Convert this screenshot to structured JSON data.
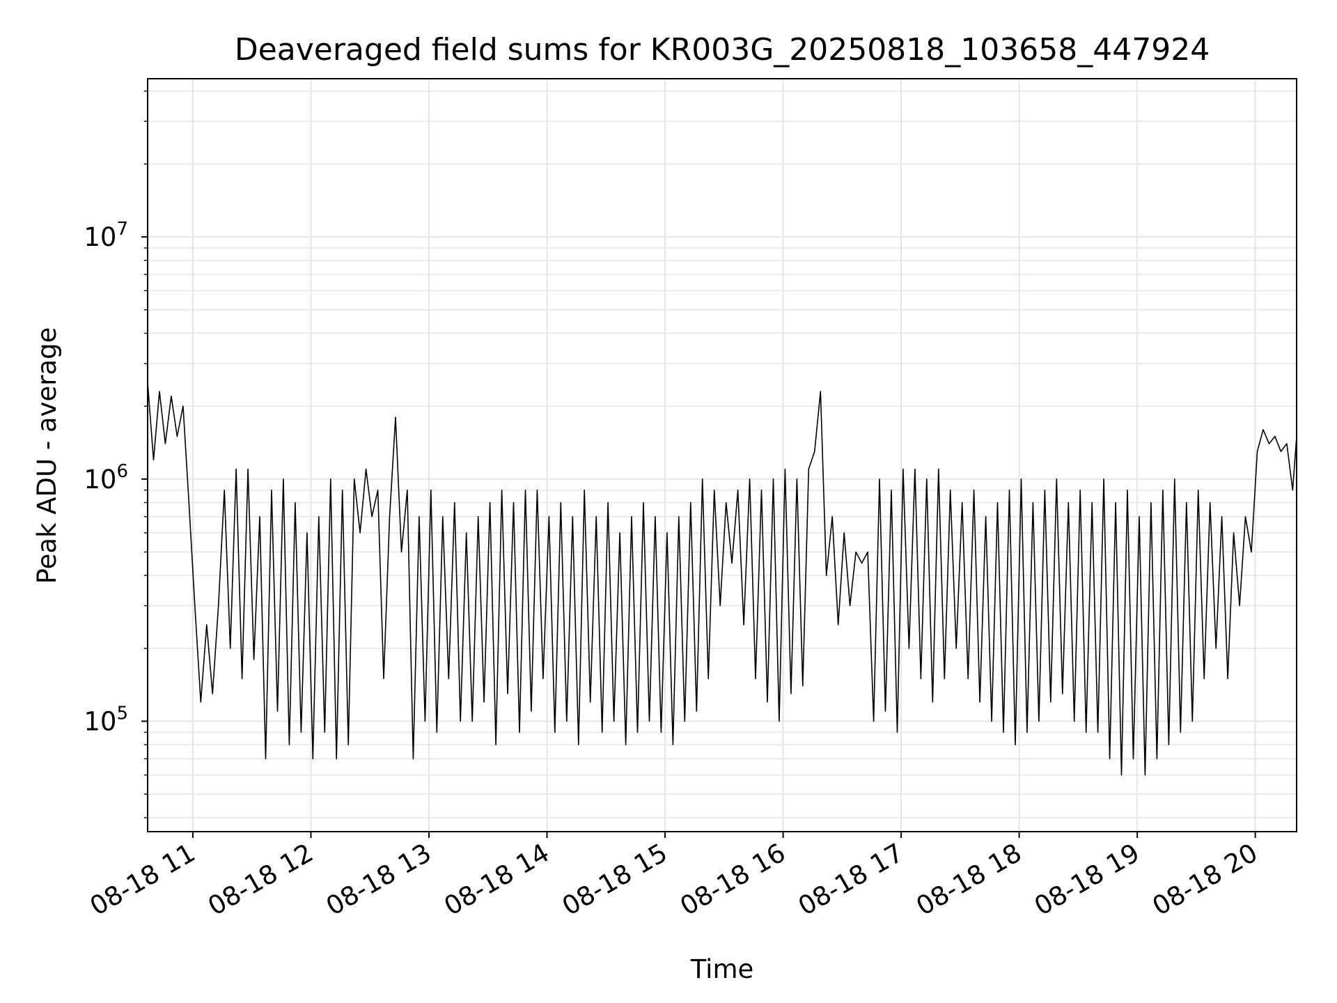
{
  "chart_data": {
    "type": "line",
    "title": "Deaveraged field sums for KR003G_20250818_103658_447924",
    "xlabel": "Time",
    "ylabel": "Peak ADU - average",
    "yscale": "log",
    "ylim": [
      35000,
      45000000
    ],
    "xlim": [
      "2025-08-18 10:37",
      "2025-08-18 20:21"
    ],
    "grid": true,
    "line_color": "#000000",
    "x_ticks": [
      {
        "label": "08-18 11",
        "time": "2025-08-18 11:00"
      },
      {
        "label": "08-18 12",
        "time": "2025-08-18 12:00"
      },
      {
        "label": "08-18 13",
        "time": "2025-08-18 13:00"
      },
      {
        "label": "08-18 14",
        "time": "2025-08-18 14:00"
      },
      {
        "label": "08-18 15",
        "time": "2025-08-18 15:00"
      },
      {
        "label": "08-18 16",
        "time": "2025-08-18 16:00"
      },
      {
        "label": "08-18 17",
        "time": "2025-08-18 17:00"
      },
      {
        "label": "08-18 18",
        "time": "2025-08-18 18:00"
      },
      {
        "label": "08-18 19",
        "time": "2025-08-18 19:00"
      },
      {
        "label": "08-18 20",
        "time": "2025-08-18 20:00"
      }
    ],
    "y_ticks": [
      {
        "base": "10",
        "exp": "5",
        "value": 100000
      },
      {
        "base": "10",
        "exp": "6",
        "value": 1000000
      },
      {
        "base": "10",
        "exp": "7",
        "value": 10000000
      }
    ],
    "series": [
      {
        "x": [
          "2025-08-18 10:37",
          "2025-08-18 10:40",
          "2025-08-18 10:43",
          "2025-08-18 10:46",
          "2025-08-18 10:49",
          "2025-08-18 10:52",
          "2025-08-18 10:55",
          "2025-08-18 10:58",
          "2025-08-18 11:01",
          "2025-08-18 11:04",
          "2025-08-18 11:07",
          "2025-08-18 11:10",
          "2025-08-18 11:13",
          "2025-08-18 11:16",
          "2025-08-18 11:19",
          "2025-08-18 11:22",
          "2025-08-18 11:25",
          "2025-08-18 11:28",
          "2025-08-18 11:31",
          "2025-08-18 11:34",
          "2025-08-18 11:37",
          "2025-08-18 11:40",
          "2025-08-18 11:43",
          "2025-08-18 11:46",
          "2025-08-18 11:49",
          "2025-08-18 11:52",
          "2025-08-18 11:55",
          "2025-08-18 11:58",
          "2025-08-18 12:01",
          "2025-08-18 12:04",
          "2025-08-18 12:07",
          "2025-08-18 12:10",
          "2025-08-18 12:13",
          "2025-08-18 12:16",
          "2025-08-18 12:19",
          "2025-08-18 12:22",
          "2025-08-18 12:25",
          "2025-08-18 12:28",
          "2025-08-18 12:31",
          "2025-08-18 12:34",
          "2025-08-18 12:37",
          "2025-08-18 12:40",
          "2025-08-18 12:43",
          "2025-08-18 12:46",
          "2025-08-18 12:49",
          "2025-08-18 12:52",
          "2025-08-18 12:55",
          "2025-08-18 12:58",
          "2025-08-18 13:01",
          "2025-08-18 13:04",
          "2025-08-18 13:07",
          "2025-08-18 13:10",
          "2025-08-18 13:13",
          "2025-08-18 13:16",
          "2025-08-18 13:19",
          "2025-08-18 13:22",
          "2025-08-18 13:25",
          "2025-08-18 13:28",
          "2025-08-18 13:31",
          "2025-08-18 13:34",
          "2025-08-18 13:37",
          "2025-08-18 13:40",
          "2025-08-18 13:43",
          "2025-08-18 13:46",
          "2025-08-18 13:49",
          "2025-08-18 13:52",
          "2025-08-18 13:55",
          "2025-08-18 13:58",
          "2025-08-18 14:01",
          "2025-08-18 14:04",
          "2025-08-18 14:07",
          "2025-08-18 14:10",
          "2025-08-18 14:13",
          "2025-08-18 14:16",
          "2025-08-18 14:19",
          "2025-08-18 14:22",
          "2025-08-18 14:25",
          "2025-08-18 14:28",
          "2025-08-18 14:31",
          "2025-08-18 14:34",
          "2025-08-18 14:37",
          "2025-08-18 14:40",
          "2025-08-18 14:43",
          "2025-08-18 14:46",
          "2025-08-18 14:49",
          "2025-08-18 14:52",
          "2025-08-18 14:55",
          "2025-08-18 14:58",
          "2025-08-18 15:01",
          "2025-08-18 15:04",
          "2025-08-18 15:07",
          "2025-08-18 15:10",
          "2025-08-18 15:13",
          "2025-08-18 15:16",
          "2025-08-18 15:19",
          "2025-08-18 15:22",
          "2025-08-18 15:25",
          "2025-08-18 15:28",
          "2025-08-18 15:31",
          "2025-08-18 15:34",
          "2025-08-18 15:37",
          "2025-08-18 15:40",
          "2025-08-18 15:43",
          "2025-08-18 15:46",
          "2025-08-18 15:49",
          "2025-08-18 15:52",
          "2025-08-18 15:55",
          "2025-08-18 15:58",
          "2025-08-18 16:01",
          "2025-08-18 16:04",
          "2025-08-18 16:07",
          "2025-08-18 16:10",
          "2025-08-18 16:13",
          "2025-08-18 16:16",
          "2025-08-18 16:19",
          "2025-08-18 16:22",
          "2025-08-18 16:25",
          "2025-08-18 16:28",
          "2025-08-18 16:31",
          "2025-08-18 16:34",
          "2025-08-18 16:37",
          "2025-08-18 16:40",
          "2025-08-18 16:43",
          "2025-08-18 16:46",
          "2025-08-18 16:49",
          "2025-08-18 16:52",
          "2025-08-18 16:55",
          "2025-08-18 16:58",
          "2025-08-18 17:01",
          "2025-08-18 17:04",
          "2025-08-18 17:07",
          "2025-08-18 17:10",
          "2025-08-18 17:13",
          "2025-08-18 17:16",
          "2025-08-18 17:19",
          "2025-08-18 17:22",
          "2025-08-18 17:25",
          "2025-08-18 17:28",
          "2025-08-18 17:31",
          "2025-08-18 17:34",
          "2025-08-18 17:37",
          "2025-08-18 17:40",
          "2025-08-18 17:43",
          "2025-08-18 17:46",
          "2025-08-18 17:49",
          "2025-08-18 17:52",
          "2025-08-18 17:55",
          "2025-08-18 17:58",
          "2025-08-18 18:01",
          "2025-08-18 18:04",
          "2025-08-18 18:07",
          "2025-08-18 18:10",
          "2025-08-18 18:13",
          "2025-08-18 18:16",
          "2025-08-18 18:19",
          "2025-08-18 18:22",
          "2025-08-18 18:25",
          "2025-08-18 18:28",
          "2025-08-18 18:31",
          "2025-08-18 18:34",
          "2025-08-18 18:37",
          "2025-08-18 18:40",
          "2025-08-18 18:43",
          "2025-08-18 18:46",
          "2025-08-18 18:49",
          "2025-08-18 18:52",
          "2025-08-18 18:55",
          "2025-08-18 18:58",
          "2025-08-18 19:01",
          "2025-08-18 19:04",
          "2025-08-18 19:07",
          "2025-08-18 19:10",
          "2025-08-18 19:13",
          "2025-08-18 19:16",
          "2025-08-18 19:19",
          "2025-08-18 19:22",
          "2025-08-18 19:25",
          "2025-08-18 19:28",
          "2025-08-18 19:31",
          "2025-08-18 19:34",
          "2025-08-18 19:37",
          "2025-08-18 19:40",
          "2025-08-18 19:43",
          "2025-08-18 19:46",
          "2025-08-18 19:49",
          "2025-08-18 19:52",
          "2025-08-18 19:55",
          "2025-08-18 19:58",
          "2025-08-18 20:01",
          "2025-08-18 20:04",
          "2025-08-18 20:07",
          "2025-08-18 20:10",
          "2025-08-18 20:13",
          "2025-08-18 20:16",
          "2025-08-18 20:19",
          "2025-08-18 20:21"
        ],
        "y": [
          2500000,
          1200000,
          2300000,
          1400000,
          2200000,
          1500000,
          2000000,
          800000,
          300000,
          120000,
          250000,
          130000,
          300000,
          900000,
          200000,
          1100000,
          150000,
          1100000,
          180000,
          700000,
          70000,
          900000,
          110000,
          1000000,
          80000,
          800000,
          90000,
          600000,
          70000,
          700000,
          90000,
          1000000,
          70000,
          900000,
          80000,
          1000000,
          600000,
          1100000,
          700000,
          900000,
          150000,
          700000,
          1800000,
          500000,
          900000,
          70000,
          700000,
          100000,
          900000,
          90000,
          700000,
          150000,
          800000,
          100000,
          600000,
          100000,
          700000,
          120000,
          800000,
          80000,
          900000,
          130000,
          800000,
          90000,
          900000,
          110000,
          900000,
          150000,
          700000,
          90000,
          800000,
          100000,
          700000,
          80000,
          900000,
          120000,
          700000,
          90000,
          800000,
          100000,
          600000,
          80000,
          700000,
          90000,
          800000,
          100000,
          700000,
          90000,
          600000,
          80000,
          700000,
          100000,
          800000,
          110000,
          1000000,
          150000,
          900000,
          300000,
          800000,
          450000,
          900000,
          250000,
          1000000,
          150000,
          900000,
          120000,
          1000000,
          100000,
          1100000,
          130000,
          1000000,
          140000,
          1100000,
          1300000,
          2300000,
          400000,
          700000,
          250000,
          600000,
          300000,
          500000,
          450000,
          500000,
          100000,
          1000000,
          110000,
          900000,
          90000,
          1100000,
          200000,
          1100000,
          150000,
          1000000,
          120000,
          1100000,
          150000,
          900000,
          200000,
          800000,
          150000,
          900000,
          120000,
          700000,
          100000,
          800000,
          90000,
          900000,
          80000,
          1000000,
          90000,
          800000,
          100000,
          900000,
          120000,
          1000000,
          130000,
          800000,
          100000,
          900000,
          90000,
          800000,
          90000,
          1000000,
          70000,
          800000,
          60000,
          900000,
          70000,
          700000,
          60000,
          800000,
          70000,
          900000,
          80000,
          1000000,
          90000,
          800000,
          100000,
          900000,
          150000,
          800000,
          200000,
          700000,
          150000,
          600000,
          300000,
          700000,
          500000,
          1300000,
          1600000,
          1400000,
          1500000,
          1300000,
          1400000,
          900000,
          1500000
        ]
      }
    ]
  }
}
